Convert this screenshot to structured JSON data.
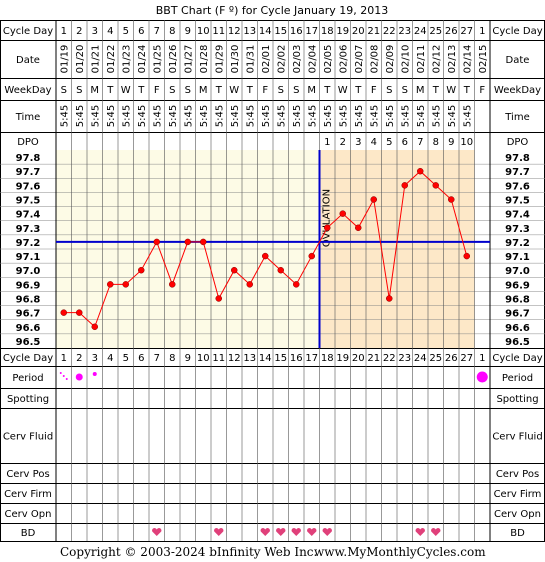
{
  "chart_data": {
    "type": "line",
    "title": "BBT Chart (F º) for Cycle January 19, 2013",
    "row_labels": {
      "cycle_day": "Cycle Day",
      "date": "Date",
      "weekday": "WeekDay",
      "time": "Time",
      "dpo": "DPO",
      "period": "Period",
      "spotting": "Spotting",
      "cerv_fluid": "Cerv Fluid",
      "cerv_pos": "Cerv Pos",
      "cerv_firm": "Cerv Firm",
      "cerv_opn": "Cerv Opn",
      "bd": "BD"
    },
    "cycle_days": [
      "1",
      "2",
      "3",
      "4",
      "5",
      "6",
      "7",
      "8",
      "9",
      "10",
      "11",
      "12",
      "13",
      "14",
      "15",
      "16",
      "17",
      "18",
      "19",
      "20",
      "21",
      "22",
      "23",
      "24",
      "25",
      "26",
      "27",
      "1"
    ],
    "dates": [
      "01/19",
      "01/20",
      "01/21",
      "01/22",
      "01/23",
      "01/24",
      "01/25",
      "01/26",
      "01/27",
      "01/28",
      "01/29",
      "01/30",
      "01/31",
      "02/01",
      "02/02",
      "02/03",
      "02/04",
      "02/05",
      "02/06",
      "02/07",
      "02/08",
      "02/09",
      "02/10",
      "02/11",
      "02/12",
      "02/13",
      "02/14",
      "02/15"
    ],
    "weekdays": [
      "S",
      "S",
      "M",
      "T",
      "W",
      "T",
      "F",
      "S",
      "S",
      "M",
      "T",
      "W",
      "T",
      "F",
      "S",
      "S",
      "M",
      "T",
      "W",
      "T",
      "F",
      "S",
      "S",
      "M",
      "T",
      "W",
      "T",
      "F"
    ],
    "times": [
      "5:45",
      "5:45",
      "5:45",
      "5:45",
      "5:45",
      "5:45",
      "5:45",
      "5:45",
      "5:45",
      "5:45",
      "5:45",
      "5:45",
      "5:45",
      "5:45",
      "5:45",
      "5:45",
      "5:45",
      "5:45",
      "5:45",
      "5:45",
      "5:45",
      "5:45",
      "5:45",
      "5:45",
      "5:45",
      "5:45",
      "5:45",
      ""
    ],
    "dpo": [
      "",
      "",
      "",
      "",
      "",
      "",
      "",
      "",
      "",
      "",
      "",
      "",
      "",
      "",
      "",
      "",
      "",
      "1",
      "2",
      "3",
      "4",
      "5",
      "6",
      "7",
      "8",
      "9",
      "10",
      ""
    ],
    "y_ticks": [
      "97.8",
      "97.7",
      "97.6",
      "97.5",
      "97.4",
      "97.3",
      "97.2",
      "97.1",
      "97.0",
      "96.9",
      "96.8",
      "96.7",
      "96.6",
      "96.5"
    ],
    "ylim": [
      96.5,
      97.8
    ],
    "temperatures": [
      96.7,
      96.7,
      96.6,
      96.9,
      96.9,
      97.0,
      97.2,
      96.9,
      97.2,
      97.2,
      96.8,
      97.0,
      96.9,
      97.1,
      97.0,
      96.9,
      97.1,
      97.3,
      97.4,
      97.3,
      97.5,
      96.8,
      97.6,
      97.7,
      97.6,
      97.5,
      97.1,
      null
    ],
    "coverline": 97.2,
    "ovulation_day_index": 16,
    "ovulation_label": "OVULATION",
    "luteal_range": [
      17,
      26
    ],
    "period": [
      "spot-dots",
      "heavy",
      "light",
      "",
      "",
      "",
      "",
      "",
      "",
      "",
      "",
      "",
      "",
      "",
      "",
      "",
      "",
      "",
      "",
      "",
      "",
      "",
      "",
      "",
      "",
      "",
      "",
      "heavy"
    ],
    "bd": [
      false,
      false,
      false,
      false,
      false,
      false,
      true,
      false,
      false,
      false,
      true,
      false,
      false,
      true,
      true,
      true,
      true,
      true,
      false,
      false,
      false,
      false,
      false,
      true,
      true,
      false,
      false,
      false
    ],
    "colors": {
      "temp_line": "#ff0000",
      "coverline": "#0000cc",
      "luteal": "#fde8c8",
      "follicular": "#fdfbe6",
      "period": "#ff00ff",
      "heart": "#e0407a",
      "grid": "#888888"
    }
  },
  "footer": {
    "copyright": "Copyright © 2003-2024 bInfinity Web Inc.",
    "site": "www.MyMonthlyCycles.com"
  }
}
